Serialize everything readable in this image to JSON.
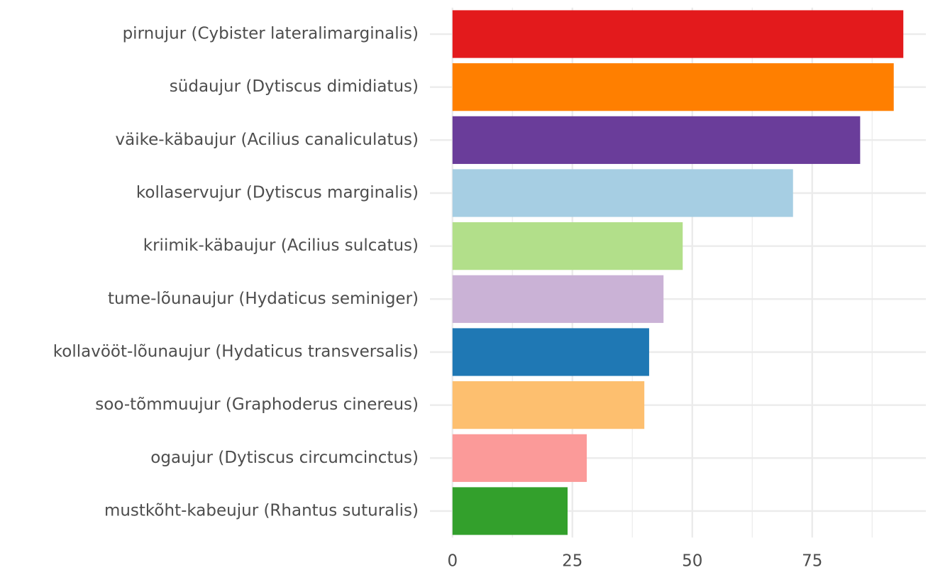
{
  "chart_data": {
    "type": "barh",
    "categories": [
      "pirnujur (Cybister lateralimarginalis)",
      "südaujur (Dytiscus dimidiatus)",
      "väike-käbaujur (Acilius canaliculatus)",
      "kollaservujur (Dytiscus marginalis)",
      "kriimik-käbaujur (Acilius sulcatus)",
      "tume-lõunaujur (Hydaticus seminiger)",
      "kollavööt-lõunaujur (Hydaticus transversalis)",
      "soo-tõmmuujur (Graphoderus cinereus)",
      "ogaujur (Dytiscus circumcinctus)",
      "mustkõht-kabeujur (Rhantus suturalis)"
    ],
    "values": [
      94,
      92,
      85,
      71,
      48,
      44,
      41,
      40,
      28,
      24
    ],
    "colors": [
      "#e31a1c",
      "#ff7f00",
      "#6a3d9a",
      "#a6cee3",
      "#b2df8a",
      "#cab2d6",
      "#1f78b4",
      "#fdbf6f",
      "#fb9a99",
      "#33a02c"
    ],
    "xlim": [
      -4.7,
      98.7
    ],
    "xticks": [
      0,
      25,
      50,
      75
    ],
    "x_minor_ticks": [
      12.5,
      37.5,
      62.5,
      87.5
    ],
    "grid": true
  }
}
